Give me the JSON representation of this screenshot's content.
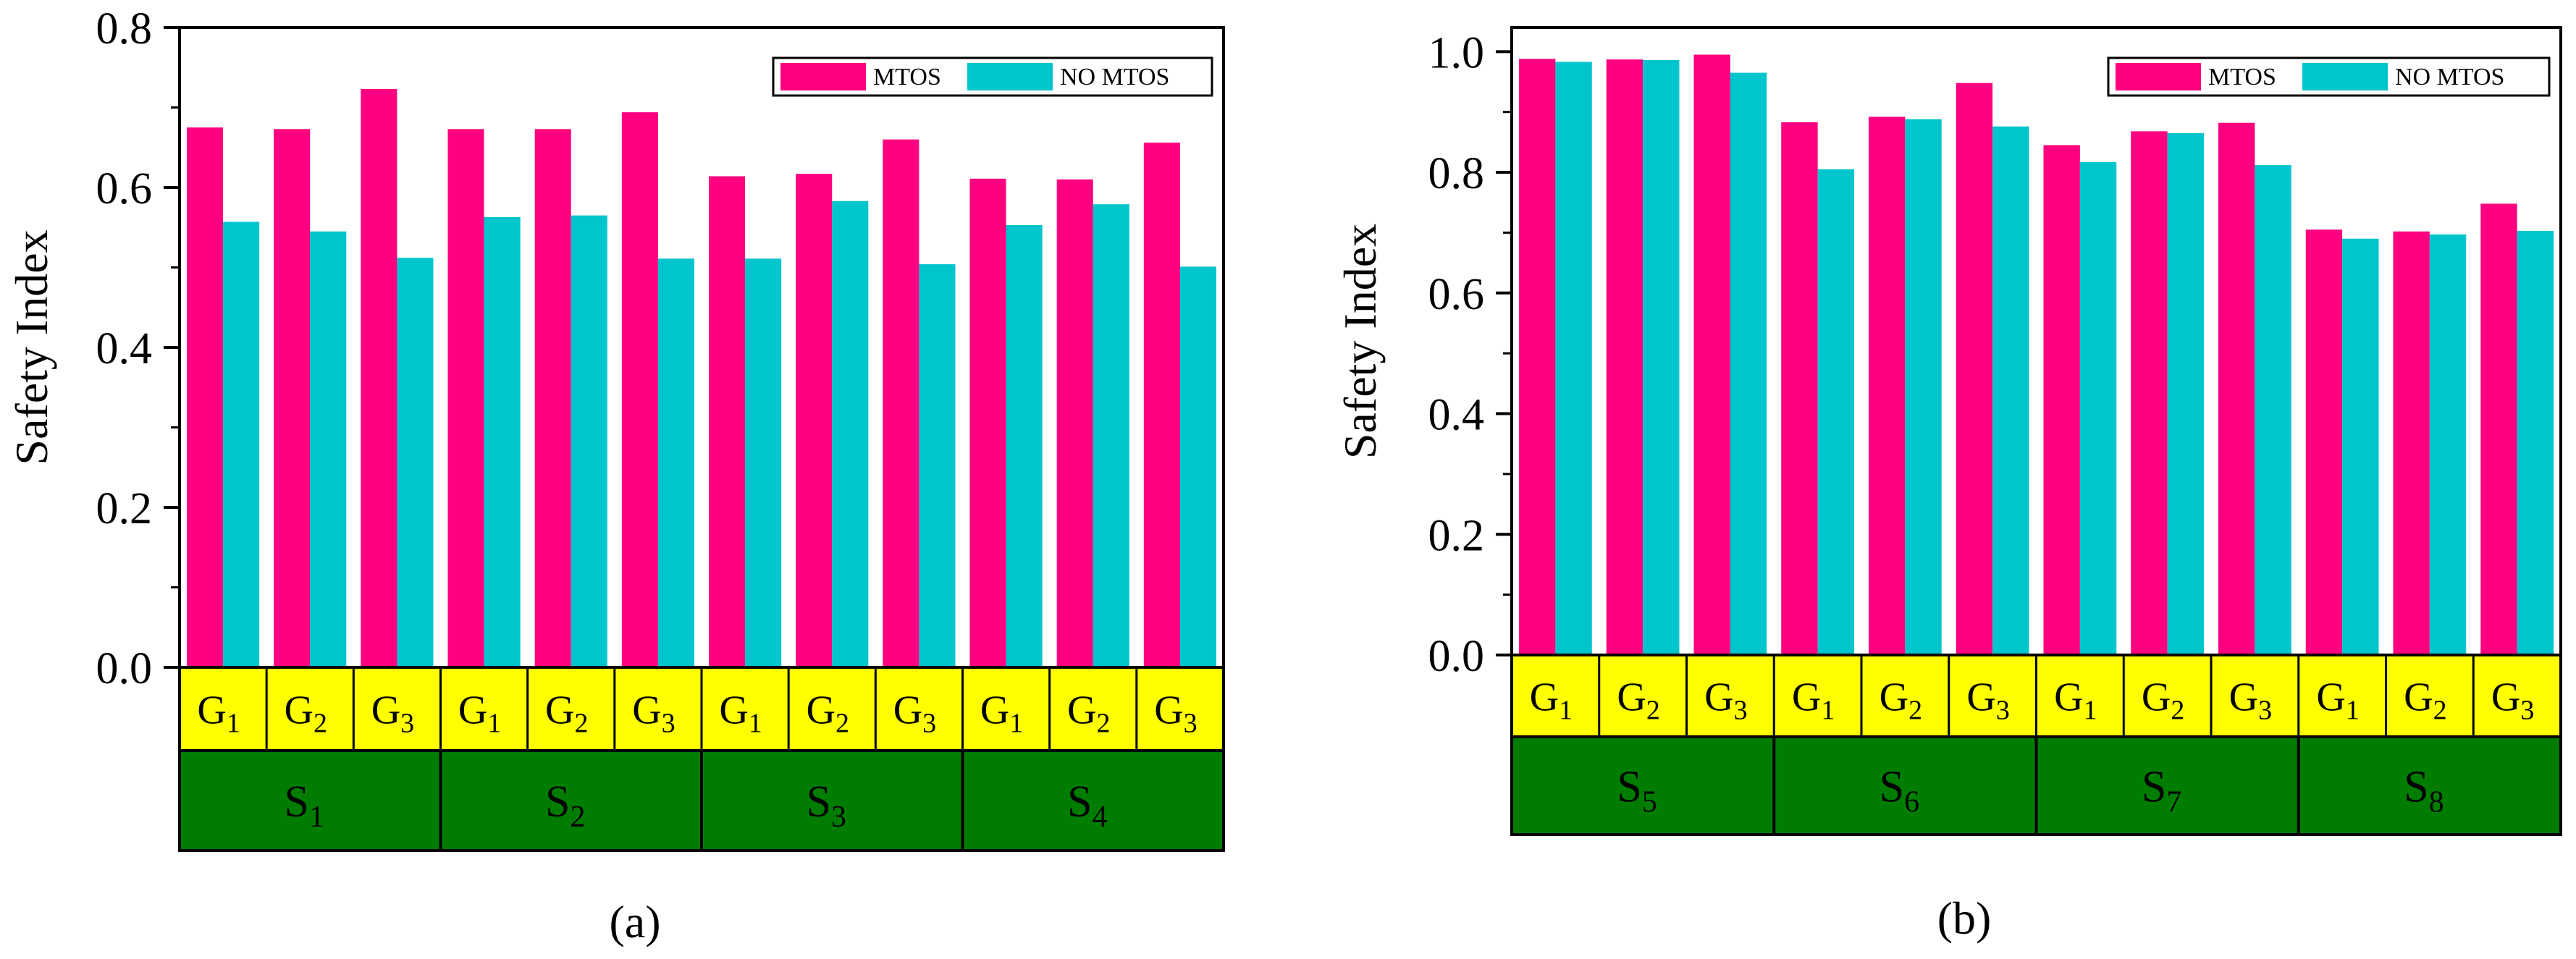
{
  "colors": {
    "mtos": "#FF0080",
    "no_mtos": "#00C5CD",
    "group_band": "#FFFF00",
    "scenario_band": "#007D00",
    "frame": "#000000"
  },
  "chart_data": [
    {
      "type": "bar",
      "panel_label": "(a)",
      "ylabel": "Safety Index",
      "ylim": [
        0.0,
        0.8
      ],
      "yticks": [
        "0.0",
        "0.2",
        "0.4",
        "0.6",
        "0.8"
      ],
      "ytick_values": [
        0.0,
        0.2,
        0.4,
        0.6,
        0.8
      ],
      "legend": {
        "position": "top-right",
        "entries": [
          "MTOS",
          "NO MTOS"
        ]
      },
      "group_prefix": "G",
      "groups": [
        "1",
        "2",
        "3"
      ],
      "scenario_prefix": "S",
      "scenarios": [
        "1",
        "2",
        "3",
        "4"
      ],
      "series": [
        {
          "name": "MTOS",
          "values": [
            0.675,
            0.673,
            0.723,
            0.673,
            0.673,
            0.694,
            0.614,
            0.617,
            0.66,
            0.611,
            0.61,
            0.656
          ]
        },
        {
          "name": "NO MTOS",
          "values": [
            0.557,
            0.545,
            0.512,
            0.563,
            0.565,
            0.511,
            0.511,
            0.583,
            0.504,
            0.553,
            0.579,
            0.501
          ]
        }
      ]
    },
    {
      "type": "bar",
      "panel_label": "(b)",
      "ylabel": "Safety Index",
      "ylim": [
        0.0,
        1.04
      ],
      "yticks": [
        "0.0",
        "0.2",
        "0.4",
        "0.6",
        "0.8",
        "1.0"
      ],
      "ytick_values": [
        0.0,
        0.2,
        0.4,
        0.6,
        0.8,
        1.0
      ],
      "legend": {
        "position": "top-right",
        "entries": [
          "MTOS",
          "NO MTOS"
        ]
      },
      "group_prefix": "G",
      "groups": [
        "1",
        "2",
        "3"
      ],
      "scenario_prefix": "S",
      "scenarios": [
        "5",
        "6",
        "7",
        "8"
      ],
      "series": [
        {
          "name": "MTOS",
          "values": [
            0.988,
            0.987,
            0.995,
            0.883,
            0.892,
            0.948,
            0.845,
            0.868,
            0.882,
            0.705,
            0.702,
            0.748
          ]
        },
        {
          "name": "NO MTOS",
          "values": [
            0.983,
            0.986,
            0.965,
            0.805,
            0.888,
            0.876,
            0.817,
            0.865,
            0.812,
            0.69,
            0.697,
            0.703
          ]
        }
      ]
    }
  ]
}
